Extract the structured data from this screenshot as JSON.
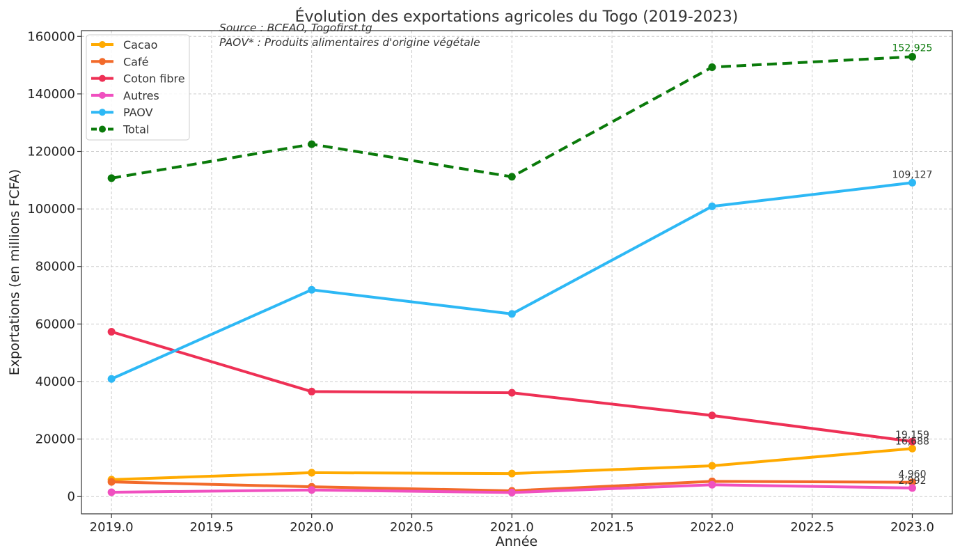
{
  "chart_data": {
    "type": "line",
    "title": "Évolution des exportations agricoles du Togo (2019-2023)",
    "xlabel": "Année",
    "ylabel": "Exportations (en millions FCFA)",
    "xlim": [
      2018.85,
      2023.2
    ],
    "ylim": [
      -6000,
      162000
    ],
    "x": [
      2019,
      2020,
      2021,
      2022,
      2023
    ],
    "x_ticks": [
      "2019.0",
      "2019.5",
      "2020.0",
      "2020.5",
      "2021.0",
      "2021.5",
      "2022.0",
      "2022.5",
      "2023.0"
    ],
    "y_ticks": [
      "0",
      "20000",
      "40000",
      "60000",
      "80000",
      "100000",
      "120000",
      "140000",
      "160000"
    ],
    "grid": true,
    "legend_position": "upper-left",
    "annotations": [
      "Source : BCEAO, Togofirst.tg",
      "PAOV* : Produits alimentaires d'origine végétale"
    ],
    "series": [
      {
        "name": "Cacao",
        "color": "#FFAA00",
        "style": "solid",
        "values": [
          5900,
          8300,
          8000,
          10700,
          16688
        ],
        "end_label": "16,688"
      },
      {
        "name": "Café",
        "color": "#F26A2A",
        "style": "solid",
        "values": [
          5100,
          3400,
          2000,
          5300,
          4960
        ],
        "end_label": "4,960"
      },
      {
        "name": "Coton fibre",
        "color": "#EE3055",
        "style": "solid",
        "values": [
          57300,
          36500,
          36100,
          28200,
          19159
        ],
        "end_label": "19,159"
      },
      {
        "name": "Autres",
        "color": "#F050C0",
        "style": "solid",
        "values": [
          1500,
          2300,
          1400,
          4100,
          2992
        ],
        "end_label": "2,992"
      },
      {
        "name": "PAOV",
        "color": "#2DB8F5",
        "style": "solid",
        "values": [
          40900,
          71900,
          63500,
          100900,
          109127
        ],
        "end_label": "109,127"
      },
      {
        "name": "Total",
        "color": "#0A7A0A",
        "style": "dashed",
        "values": [
          110700,
          122500,
          111200,
          149300,
          152925
        ],
        "end_label": "152,925"
      }
    ]
  }
}
